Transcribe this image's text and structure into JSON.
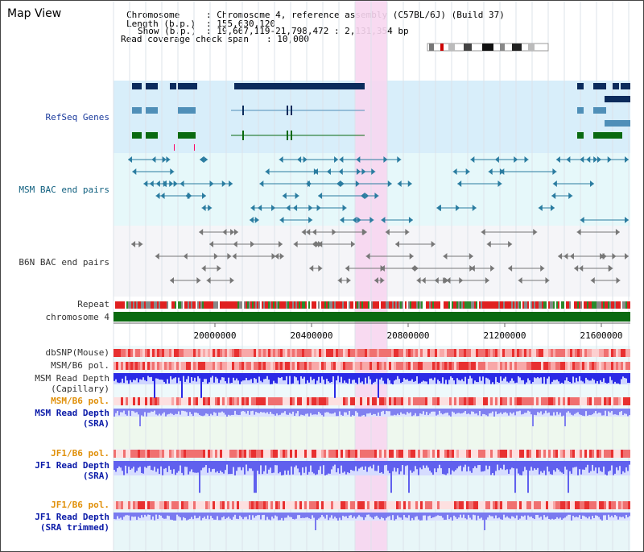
{
  "title": "Map View",
  "header": {
    "chromosome_label": "Chromosome",
    "chromosome_value": ": Chromosome 4, reference assembly (C57BL/6J) (Build 37)",
    "length_label": "Length (b.p.)",
    "length_value": ": 155,630,120",
    "show_label": "Show (b.p.)",
    "show_value": ": 19,667,119-21,798,472 : 2,131,354 bp",
    "coverage_label": "Read coverage check span",
    "coverage_value": ": 10,000"
  },
  "tracks": {
    "refseq": "RefSeq Genes",
    "msm_bac": "MSM BAC end pairs",
    "b6n_bac": "B6N BAC end pairs",
    "repeat": "Repeat",
    "chromosome": "chromosome 4",
    "dbsnp": "dbSNP(Mouse)",
    "msm_b6_pol_1": "MSM/B6 pol.",
    "msm_depth_cap_1": "MSM Read Depth",
    "msm_depth_cap_2": "(Capillary)",
    "msm_b6_pol_2": "MSM/B6 pol.",
    "msm_depth_sra_1": "MSM Read Depth",
    "msm_depth_sra_2": "(SRA)",
    "jf1_b6_pol_1": "JF1/B6 pol.",
    "jf1_depth_sra_1": "JF1 Read Depth",
    "jf1_depth_sra_2": "(SRA)",
    "jf1_b6_pol_2": "JF1/B6 pol.",
    "jf1_depth_trim_1": "JF1 Read Depth",
    "jf1_depth_trim_2": "(SRA trimmed)"
  },
  "axis": {
    "ticks": [
      "20000000",
      "20400000",
      "20800000",
      "21200000",
      "21600000"
    ]
  },
  "colors": {
    "refseq_bg": "#d8eefa",
    "bac_bg": "#e6f8fa",
    "b6n_bg": "#f5f5f8",
    "highlight": "#f7d6f0",
    "navy": "#0b2b5c",
    "steel": "#4f8fb8",
    "green": "#0a6a10",
    "depth_blue": "#3030e8",
    "depth_light": "#8080f0",
    "snp_red": "#ee4444",
    "chrom_green": "#0a6a10"
  }
}
